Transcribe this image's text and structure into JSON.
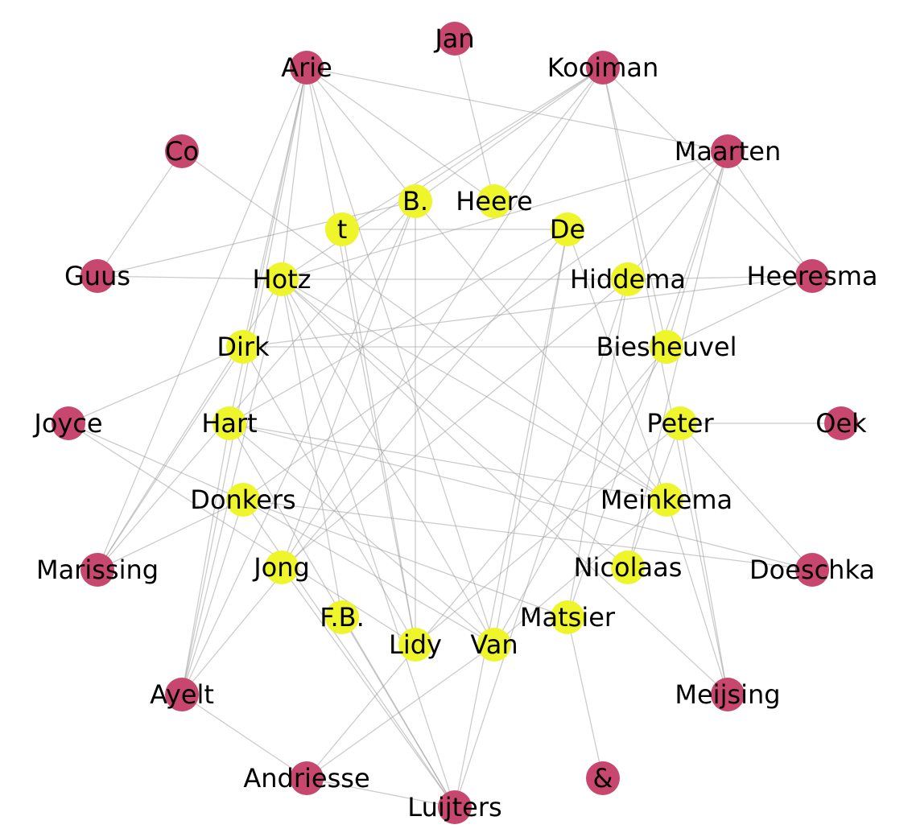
{
  "colors": {
    "outer": "#c8476f",
    "inner": "#eef52a",
    "edge": "#9a9a9a",
    "label": "#000000"
  },
  "nodes": [
    {
      "id": "Jan",
      "label": "Jan",
      "group": "outer"
    },
    {
      "id": "Arie",
      "label": "Arie",
      "group": "outer"
    },
    {
      "id": "Kooiman",
      "label": "Kooiman",
      "group": "outer"
    },
    {
      "id": "Co",
      "label": "Co",
      "group": "outer"
    },
    {
      "id": "Maarten",
      "label": "Maarten",
      "group": "outer"
    },
    {
      "id": "Guus",
      "label": "Guus",
      "group": "outer"
    },
    {
      "id": "Heeresma",
      "label": "Heeresma",
      "group": "outer"
    },
    {
      "id": "Joyce",
      "label": "Joyce",
      "group": "outer"
    },
    {
      "id": "Oek",
      "label": "Oek",
      "group": "outer"
    },
    {
      "id": "Marissing",
      "label": "Marissing",
      "group": "outer"
    },
    {
      "id": "Doeschka",
      "label": "Doeschka",
      "group": "outer"
    },
    {
      "id": "Ayelt",
      "label": "Ayelt",
      "group": "outer"
    },
    {
      "id": "Meijsing",
      "label": "Meijsing",
      "group": "outer"
    },
    {
      "id": "Andriesse",
      "label": "Andriesse",
      "group": "outer"
    },
    {
      "id": "Amp",
      "label": "&",
      "group": "outer"
    },
    {
      "id": "Luijters",
      "label": "Luijters",
      "group": "outer"
    },
    {
      "id": "B",
      "label": "B.",
      "group": "inner"
    },
    {
      "id": "Heere",
      "label": "Heere",
      "group": "inner"
    },
    {
      "id": "t",
      "label": "t",
      "group": "inner"
    },
    {
      "id": "De",
      "label": "De",
      "group": "inner"
    },
    {
      "id": "Hotz",
      "label": "Hotz",
      "group": "inner"
    },
    {
      "id": "Hiddema",
      "label": "Hiddema",
      "group": "inner"
    },
    {
      "id": "Dirk",
      "label": "Dirk",
      "group": "inner"
    },
    {
      "id": "Biesheuvel",
      "label": "Biesheuvel",
      "group": "inner"
    },
    {
      "id": "Hart",
      "label": "Hart",
      "group": "inner"
    },
    {
      "id": "Peter",
      "label": "Peter",
      "group": "inner"
    },
    {
      "id": "Donkers",
      "label": "Donkers",
      "group": "inner"
    },
    {
      "id": "Meinkema",
      "label": "Meinkema",
      "group": "inner"
    },
    {
      "id": "Jong",
      "label": "Jong",
      "group": "inner"
    },
    {
      "id": "Nicolaas",
      "label": "Nicolaas",
      "group": "inner"
    },
    {
      "id": "FB",
      "label": "F.B.",
      "group": "inner"
    },
    {
      "id": "Matsier",
      "label": "Matsier",
      "group": "inner"
    },
    {
      "id": "Lidy",
      "label": "Lidy",
      "group": "inner"
    },
    {
      "id": "Van",
      "label": "Van",
      "group": "inner"
    }
  ],
  "edges": [
    [
      "Jan",
      "Heere"
    ],
    [
      "Arie",
      "Maarten"
    ],
    [
      "Arie",
      "B"
    ],
    [
      "Arie",
      "Heere"
    ],
    [
      "Arie",
      "Hotz"
    ],
    [
      "Arie",
      "Dirk"
    ],
    [
      "Arie",
      "Hart"
    ],
    [
      "Arie",
      "Lidy"
    ],
    [
      "Arie",
      "Van"
    ],
    [
      "Arie",
      "Marissing"
    ],
    [
      "Arie",
      "Ayelt"
    ],
    [
      "Kooiman",
      "B"
    ],
    [
      "Kooiman",
      "t"
    ],
    [
      "Kooiman",
      "Hotz"
    ],
    [
      "Kooiman",
      "Heere"
    ],
    [
      "Kooiman",
      "Heeresma"
    ],
    [
      "Kooiman",
      "Biesheuvel"
    ],
    [
      "Kooiman",
      "Meijsing"
    ],
    [
      "Kooiman",
      "Jong"
    ],
    [
      "Co",
      "Guus"
    ],
    [
      "Co",
      "Meinkema"
    ],
    [
      "Maarten",
      "Hotz"
    ],
    [
      "Maarten",
      "Hiddema"
    ],
    [
      "Maarten",
      "Biesheuvel"
    ],
    [
      "Maarten",
      "Nicolaas"
    ],
    [
      "Maarten",
      "Matsier"
    ],
    [
      "Maarten",
      "Heeresma"
    ],
    [
      "Maarten",
      "Donkers"
    ],
    [
      "Guus",
      "B"
    ],
    [
      "Guus",
      "Hotz"
    ],
    [
      "Heeresma",
      "Hiddema"
    ],
    [
      "Heeresma",
      "Biesheuvel"
    ],
    [
      "Heeresma",
      "Dirk"
    ],
    [
      "Joyce",
      "Dirk"
    ],
    [
      "Joyce",
      "Donkers"
    ],
    [
      "Joyce",
      "Lidy"
    ],
    [
      "Oek",
      "Peter"
    ],
    [
      "Marissing",
      "Hotz"
    ],
    [
      "Marissing",
      "B"
    ],
    [
      "Marissing",
      "Dirk"
    ],
    [
      "Marissing",
      "Donkers"
    ],
    [
      "Doeschka",
      "Hart"
    ],
    [
      "Doeschka",
      "Peter"
    ],
    [
      "Doeschka",
      "Donkers"
    ],
    [
      "Ayelt",
      "Hotz"
    ],
    [
      "Ayelt",
      "B"
    ],
    [
      "Ayelt",
      "Hart"
    ],
    [
      "Ayelt",
      "Donkers"
    ],
    [
      "Ayelt",
      "Andriesse"
    ],
    [
      "Ayelt",
      "De"
    ],
    [
      "Meijsing",
      "Peter"
    ],
    [
      "Meijsing",
      "Meinkema"
    ],
    [
      "Meijsing",
      "Hotz"
    ],
    [
      "Andriesse",
      "Van"
    ],
    [
      "Andriesse",
      "Biesheuvel"
    ],
    [
      "Andriesse",
      "Luijters"
    ],
    [
      "Amp",
      "Matsier"
    ],
    [
      "Luijters",
      "Hart"
    ],
    [
      "Luijters",
      "Jong"
    ],
    [
      "Luijters",
      "De"
    ],
    [
      "Luijters",
      "Hiddema"
    ],
    [
      "Luijters",
      "Hotz"
    ],
    [
      "Luijters",
      "FB"
    ],
    [
      "B",
      "Lidy"
    ],
    [
      "B",
      "Meinkema"
    ],
    [
      "B",
      "Jong"
    ],
    [
      "t",
      "Lidy"
    ],
    [
      "t",
      "De"
    ],
    [
      "Hotz",
      "Hiddema"
    ],
    [
      "Hotz",
      "Van"
    ],
    [
      "Hotz",
      "Nicolaas"
    ],
    [
      "Hotz",
      "Meinkema"
    ],
    [
      "Hotz",
      "FB"
    ],
    [
      "Dirk",
      "Biesheuvel"
    ],
    [
      "Dirk",
      "Lidy"
    ],
    [
      "Hart",
      "Meinkema"
    ],
    [
      "Hart",
      "Van"
    ],
    [
      "De",
      "Van"
    ],
    [
      "De",
      "Hart"
    ],
    [
      "De",
      "Meinkema"
    ],
    [
      "Hiddema",
      "Matsier"
    ],
    [
      "Biesheuvel",
      "Van"
    ],
    [
      "Peter",
      "Nicolaas"
    ],
    [
      "Peter",
      "Lidy"
    ],
    [
      "Donkers",
      "Van"
    ],
    [
      "Donkers",
      "Luijters"
    ],
    [
      "Donkers",
      "Matsier"
    ],
    [
      "Jong",
      "Hiddema"
    ],
    [
      "Meinkema",
      "Van"
    ]
  ]
}
